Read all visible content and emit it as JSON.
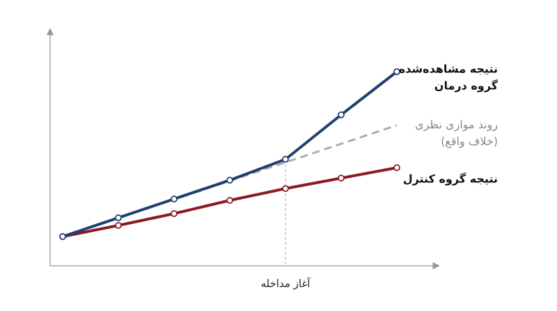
{
  "chart_data": {
    "type": "line",
    "xlim": [
      -0.225,
      6.725
    ],
    "ylim": [
      0,
      33.7
    ],
    "series": [
      {
        "name": [
          "نتیجه مشاهده‌شده",
          "گروه درمان"
        ],
        "color": "#1f3f6e",
        "style": "solid",
        "markers": true,
        "x": [
          0,
          1,
          2,
          3,
          4,
          5,
          6
        ],
        "values": [
          4.2,
          6.9,
          9.6,
          12.3,
          15.3,
          21.7,
          27.9
        ]
      },
      {
        "name": [
          "روند موازی نظری",
          "(خلاف واقع)"
        ],
        "color": "#a8adb3",
        "style": "dashed",
        "markers": false,
        "x": [
          0,
          6
        ],
        "values": [
          4.2,
          20.2
        ]
      },
      {
        "name": [
          "نتیجه گروه کنترل"
        ],
        "color": "#8b1a24",
        "style": "solid",
        "markers": true,
        "x": [
          0,
          1,
          2,
          3,
          4,
          5,
          6
        ],
        "values": [
          4.2,
          5.8,
          7.5,
          9.4,
          11.1,
          12.6,
          14.1
        ]
      }
    ],
    "intervention": {
      "x": 4,
      "label": "آغاز مداخله"
    }
  }
}
